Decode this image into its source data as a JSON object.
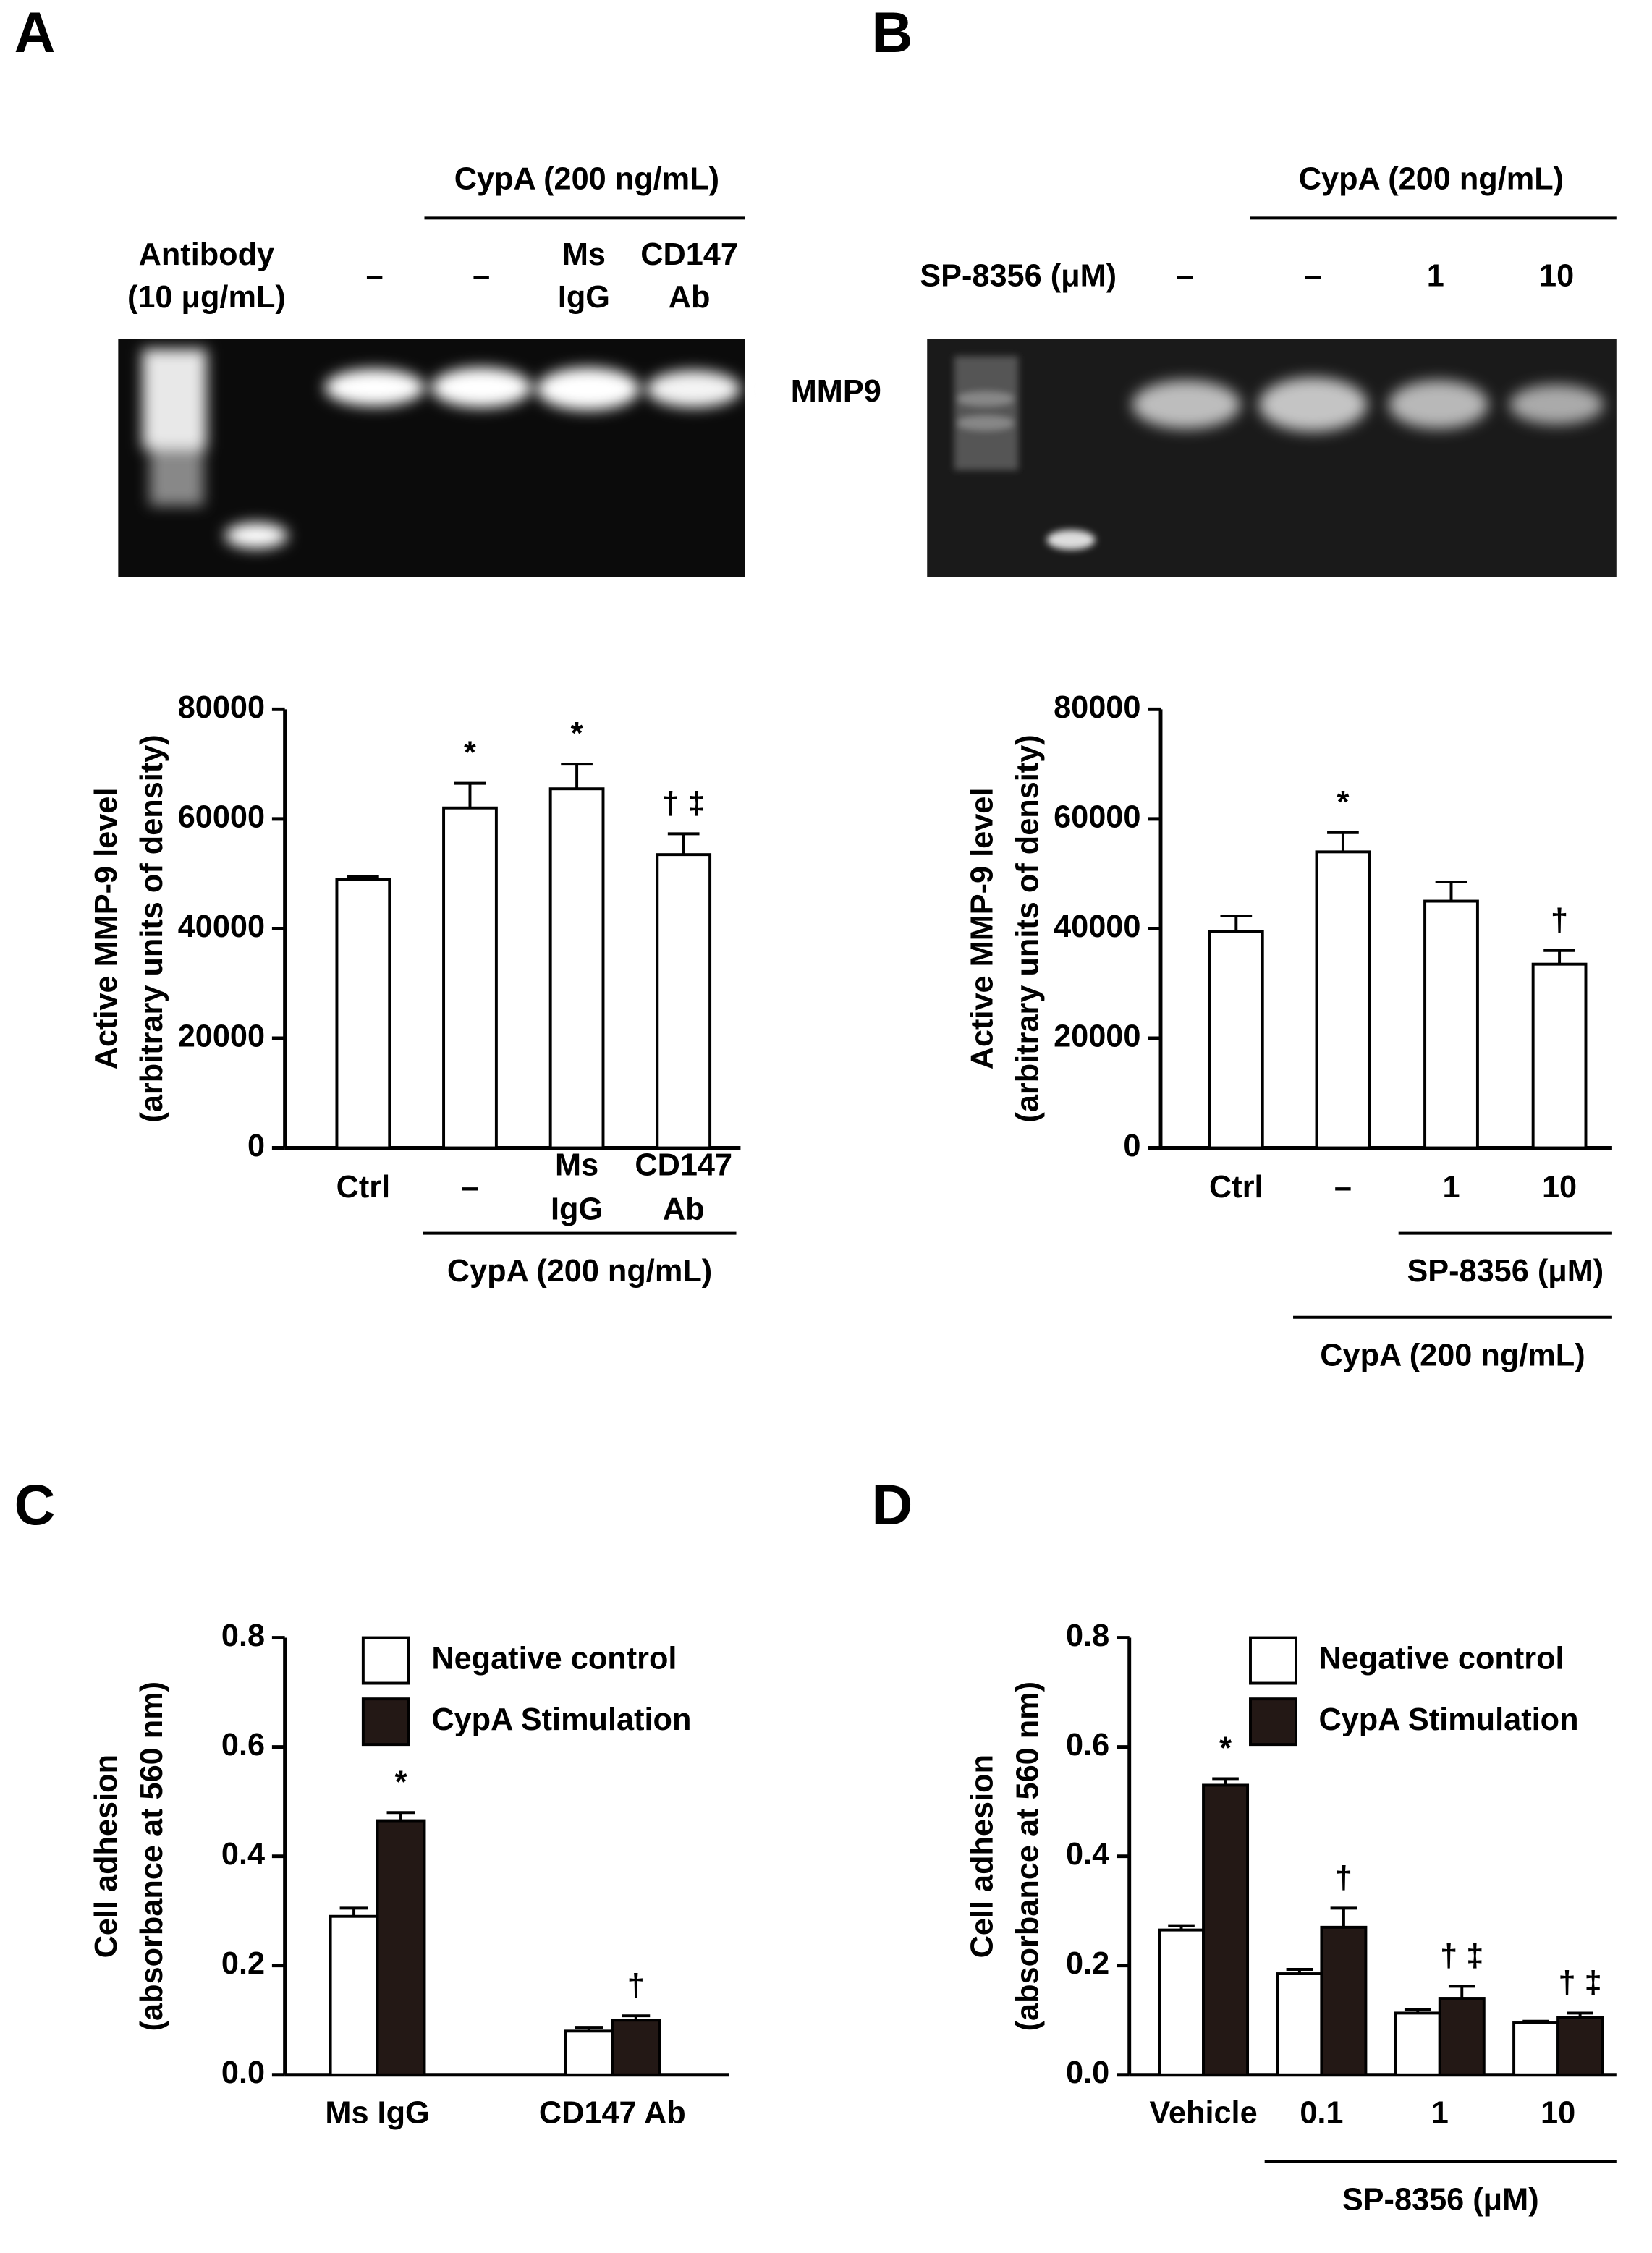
{
  "panel_labels": [
    "A",
    "B",
    "C",
    "D"
  ],
  "gels": [
    {
      "header": "CypA (200 ng/mL)",
      "row_label": [
        "Antibody",
        "(10 μg/mL)"
      ],
      "lane_labels": [
        [
          "–"
        ],
        [
          "–"
        ],
        [
          "Ms",
          "IgG"
        ],
        [
          "CD147",
          "Ab"
        ]
      ],
      "band_label": "MMP9"
    },
    {
      "header": "CypA (200 ng/mL)",
      "row_label": [
        "SP-8356 (μM)"
      ],
      "lane_labels": [
        [
          "–"
        ],
        [
          "–"
        ],
        [
          "1"
        ],
        [
          "10"
        ]
      ]
    }
  ],
  "chart_data": [
    {
      "type": "bar",
      "ylabel": [
        "Active MMP-9 level",
        "(arbitrary units of density)"
      ],
      "categories": [
        [
          "Ctrl"
        ],
        [
          "–"
        ],
        [
          "Ms",
          "IgG"
        ],
        [
          "CD147",
          "Ab"
        ]
      ],
      "values": [
        49000,
        62000,
        65500,
        53500
      ],
      "errors": [
        500,
        4500,
        4500,
        3800
      ],
      "value_annotations": [
        null,
        "*",
        "*",
        "† ‡"
      ],
      "group_labels": [
        "CypA (200 ng/mL)"
      ],
      "color": "#ffffff",
      "ylim": [
        0,
        80000
      ],
      "yticks": [
        0,
        20000,
        40000,
        60000,
        80000
      ]
    },
    {
      "type": "bar",
      "ylabel": [
        "Active MMP-9 level",
        "(arbitrary units of density)"
      ],
      "categories": [
        [
          "Ctrl"
        ],
        [
          "–"
        ],
        [
          "1"
        ],
        [
          "10"
        ]
      ],
      "values": [
        39500,
        54000,
        45000,
        33500
      ],
      "errors": [
        2800,
        3500,
        3500,
        2500
      ],
      "value_annotations": [
        null,
        "*",
        null,
        "†"
      ],
      "group_labels": [
        "SP-8356 (μM)",
        "CypA (200 ng/mL)"
      ],
      "color": "#ffffff",
      "ylim": [
        0,
        80000
      ],
      "yticks": [
        0,
        20000,
        40000,
        60000,
        80000
      ]
    },
    {
      "type": "grouped_bar",
      "ylabel": [
        "Cell adhesion",
        "(absorbance at 560 nm)"
      ],
      "categories": [
        [
          "Ms IgG"
        ],
        [
          "CD147 Ab"
        ]
      ],
      "series": [
        {
          "name": "Negative control",
          "color": "#ffffff",
          "values": [
            0.29,
            0.08
          ],
          "errors": [
            0.015,
            0.007
          ],
          "value_annotations": [
            null,
            null
          ]
        },
        {
          "name": "CypA Stimulation",
          "color": "#231815",
          "values": [
            0.465,
            0.1
          ],
          "errors": [
            0.015,
            0.008
          ],
          "value_annotations": [
            "*",
            "†"
          ]
        }
      ],
      "ylim": [
        0,
        0.8
      ],
      "yticks": [
        {
          "value": 0,
          "label": "0.0"
        },
        0.2,
        0.4,
        0.6,
        0.8
      ],
      "legend": "upper right"
    },
    {
      "type": "grouped_bar",
      "ylabel": [
        "Cell adhesion",
        "(absorbance at 560 nm)"
      ],
      "categories": [
        [
          "Vehicle"
        ],
        [
          "0.1"
        ],
        [
          "1"
        ],
        [
          "10"
        ]
      ],
      "series": [
        {
          "name": "Negative control",
          "color": "#ffffff",
          "values": [
            0.265,
            0.185,
            0.113,
            0.095
          ],
          "errors": [
            0.008,
            0.008,
            0.006,
            0.003
          ],
          "value_annotations": [
            null,
            null,
            null,
            null
          ]
        },
        {
          "name": "CypA Stimulation",
          "color": "#231815",
          "values": [
            0.53,
            0.27,
            0.14,
            0.105
          ],
          "errors": [
            0.012,
            0.035,
            0.022,
            0.008
          ],
          "value_annotations": [
            "*",
            "†",
            "† ‡",
            "† ‡"
          ]
        }
      ],
      "group_labels": [
        "SP-8356 (μM)"
      ],
      "ylim": [
        0,
        0.8
      ],
      "yticks": [
        {
          "value": 0,
          "label": "0.0"
        },
        0.2,
        0.4,
        0.6,
        0.8
      ],
      "legend": "upper right"
    }
  ]
}
